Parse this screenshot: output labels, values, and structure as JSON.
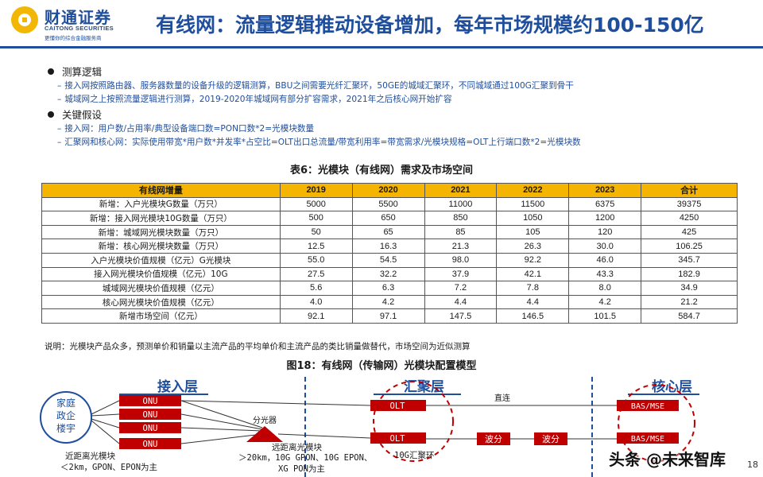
{
  "header": {
    "logo_cn": "财通证券",
    "logo_en": "CAITONG SECURITIES",
    "logo_slogan": "更懂你的综合金融服务商",
    "title": "有线网：流量逻辑推动设备增加，每年市场规模约100-150亿"
  },
  "bullets": [
    {
      "heading": "测算逻辑",
      "items": [
        "接入网按照路由器、服务器数量的设备升级的逻辑测算，BBU之间需要光纤汇聚环，50GE的城域汇聚环，不同城域通过100G汇聚到骨干",
        "城域网之上按照流量逻辑进行测算，2019-2020年城域网有部分扩容需求，2021年之后核心网开始扩容"
      ]
    },
    {
      "heading": "关键假设",
      "items": [
        "接入网：用户数/占用率/典型设备端口数=PON口数*2=光模块数量",
        "汇聚网和核心网：实际使用带宽*用户数*并发率*占空比=OLT出口总流量/带宽利用率=带宽需求/光模块规格=OLT上行端口数*2=光模块数"
      ]
    }
  ],
  "table": {
    "title": "表6：光模块（有线网）需求及市场空间",
    "headers": [
      "有线网增量",
      "2019",
      "2020",
      "2021",
      "2022",
      "2023",
      "合计"
    ],
    "rows": [
      [
        "新增：入户光模块G数量（万只）",
        "5000",
        "5500",
        "11000",
        "11500",
        "6375",
        "39375"
      ],
      [
        "新增：接入网光模块10G数量（万只）",
        "500",
        "650",
        "850",
        "1050",
        "1200",
        "4250"
      ],
      [
        "新增：城域网光模块数量（万只）",
        "50",
        "65",
        "85",
        "105",
        "120",
        "425"
      ],
      [
        "新增：核心网光模块数量（万只）",
        "12.5",
        "16.3",
        "21.3",
        "26.3",
        "30.0",
        "106.25"
      ],
      [
        "入户光模块价值规模（亿元）G光模块",
        "55.0",
        "54.5",
        "98.0",
        "92.2",
        "46.0",
        "345.7"
      ],
      [
        "接入网光模块价值规模（亿元）10G",
        "27.5",
        "32.2",
        "37.9",
        "42.1",
        "43.3",
        "182.9"
      ],
      [
        "城域网光模块价值规模（亿元）",
        "5.6",
        "6.3",
        "7.2",
        "7.8",
        "8.0",
        "34.9"
      ],
      [
        "核心网光模块价值规模（亿元）",
        "4.0",
        "4.2",
        "4.4",
        "4.4",
        "4.2",
        "21.2"
      ],
      [
        "新增市场空间（亿元）",
        "92.1",
        "97.1",
        "147.5",
        "146.5",
        "101.5",
        "584.7"
      ]
    ],
    "note": "说明：光模块产品众多，预测单价和销量以主流产品的平均单价和主流产品的类比销量做替代，市场空间为近似测算"
  },
  "figure": {
    "title": "图18：有线网（传输网）光模块配置模型",
    "layers": [
      "接入层",
      "汇聚层",
      "核心层"
    ],
    "home": [
      "家庭",
      "政企",
      "楼宇"
    ],
    "onu_label": "ONU",
    "splitter": "分光器",
    "olt_label": "OLT",
    "direct_label": "直连",
    "wdm_label": "波分",
    "bas_label": "BAS/MSE",
    "ring_label": "10G汇聚环",
    "near_label": [
      "近距离光模块",
      "＜2km，GPON、EPON为主"
    ],
    "far_label": [
      "远距离光模块",
      "＞20km，10G GPON、10G EPON、",
      "XG PON为主"
    ]
  },
  "colors": {
    "brand_blue": "#1f4e9c",
    "table_header": "#f4b400",
    "node_red": "#c00000"
  },
  "watermark": "头条 @未来智库",
  "page_number": "18"
}
